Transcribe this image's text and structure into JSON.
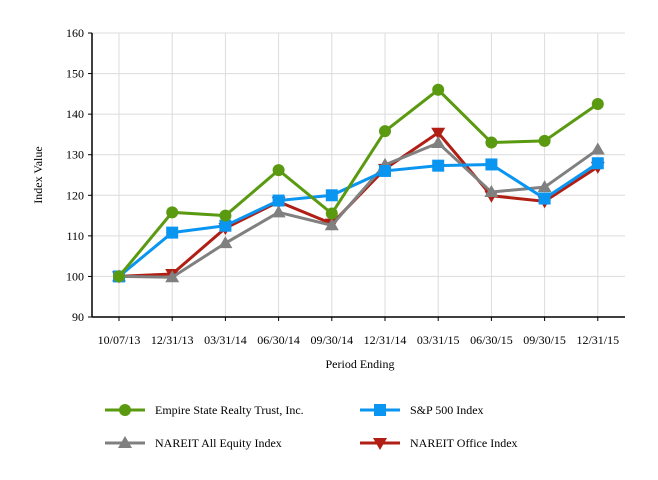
{
  "chart_data": {
    "type": "line",
    "title": "",
    "xlabel": "Period Ending",
    "ylabel": "Index Value",
    "ylim": [
      90,
      160
    ],
    "yticks": [
      90,
      100,
      110,
      120,
      130,
      140,
      150,
      160
    ],
    "grid": true,
    "legend_placement": "bottom",
    "categories": [
      "10/07/13",
      "12/31/13",
      "03/31/14",
      "06/30/14",
      "09/30/14",
      "12/31/14",
      "03/31/15",
      "06/30/15",
      "09/30/15",
      "12/31/15"
    ],
    "series": [
      {
        "name": "Empire State Realty Trust, Inc.",
        "color": "#5a9a10",
        "marker": "circle",
        "values": [
          100,
          115.8,
          115.0,
          126.2,
          115.5,
          135.8,
          146.0,
          133.0,
          133.4,
          142.5
        ]
      },
      {
        "name": "S&P 500 Index",
        "color": "#0a96f0",
        "marker": "square",
        "values": [
          100,
          110.8,
          112.5,
          118.7,
          120.0,
          126.0,
          127.3,
          127.6,
          119.2,
          127.9
        ]
      },
      {
        "name": "NAREIT All Equity Index",
        "color": "#808080",
        "marker": "triangle-up",
        "values": [
          100,
          99.8,
          108.2,
          115.8,
          112.6,
          127.5,
          132.9,
          120.8,
          122.0,
          131.3
        ]
      },
      {
        "name": "NAREIT Office Index",
        "color": "#b01e14",
        "marker": "triangle-down",
        "values": [
          100,
          100.6,
          111.9,
          118.4,
          113.0,
          126.5,
          135.4,
          119.9,
          118.5,
          127.0
        ]
      }
    ]
  }
}
